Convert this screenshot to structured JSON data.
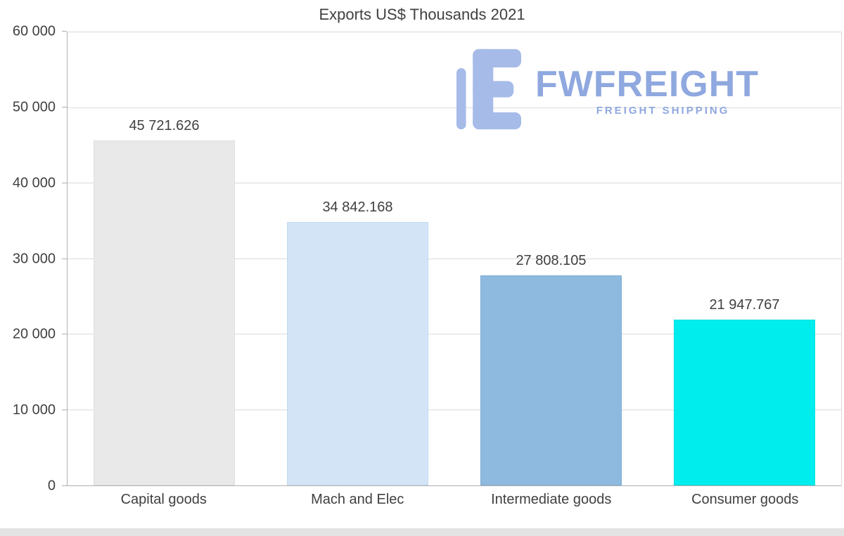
{
  "title": "Exports US$ Thousands 2021",
  "watermark": {
    "brand": "FWFREIGHT",
    "tagline": "FREIGHT SHIPPING",
    "color": "#8fa8df"
  },
  "chart_data": {
    "type": "bar",
    "title": "Exports US$ Thousands 2021",
    "categories": [
      "Capital goods",
      "Mach and Elec",
      "Intermediate goods",
      "Consumer goods"
    ],
    "values": [
      45721.626,
      34842.168,
      27808.105,
      21947.767
    ],
    "value_labels": [
      "45 721.626",
      "34 842.168",
      "27 808.105",
      "21 947.767"
    ],
    "bar_colors": [
      "#e9e9e9",
      "#d3e4f7",
      "#8dbade",
      "#00eded"
    ],
    "bar_borders": [
      "#dedede",
      "#c4d8ee",
      "#80aed4",
      "#00dede"
    ],
    "xlabel": "",
    "ylabel": "",
    "ylim": [
      0,
      60000
    ],
    "ytick_interval": 10000,
    "ytick_labels": [
      "0",
      "10 000",
      "20 000",
      "30 000",
      "40 000",
      "50 000",
      "60 000"
    ],
    "grid": true,
    "legend": "none"
  }
}
